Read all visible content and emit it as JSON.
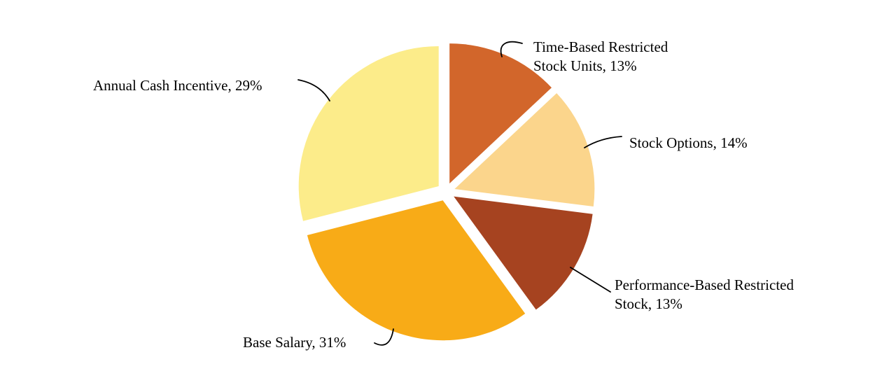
{
  "chart_data": {
    "type": "pie",
    "title": "",
    "legend": "none",
    "style": "exploded",
    "start_angle_deg": 0,
    "direction": "clockwise",
    "background_color": "#ffffff",
    "label_color": "#000000",
    "slices": [
      {
        "name": "Time-Based Restricted Stock Units",
        "value": 13,
        "unit": "%",
        "color": "#D2662B",
        "label_lines": [
          "Time-Based Restricted",
          "Stock Units, 13%"
        ]
      },
      {
        "name": "Stock Options",
        "value": 14,
        "unit": "%",
        "color": "#FBD58C",
        "label_lines": [
          "Stock Options, 14%"
        ]
      },
      {
        "name": "Performance-Based Restricted Stock",
        "value": 13,
        "unit": "%",
        "color": "#A64320",
        "label_lines": [
          "Performance-Based Restricted",
          "Stock, 13%"
        ]
      },
      {
        "name": "Base Salary",
        "value": 31,
        "unit": "%",
        "color": "#F8AB17",
        "label_lines": [
          "Base Salary, 31%"
        ]
      },
      {
        "name": "Annual Cash Incentive",
        "value": 29,
        "unit": "%",
        "color": "#FCEC8A",
        "label_lines": [
          "Annual Cash Incentive, 29%"
        ]
      }
    ]
  }
}
